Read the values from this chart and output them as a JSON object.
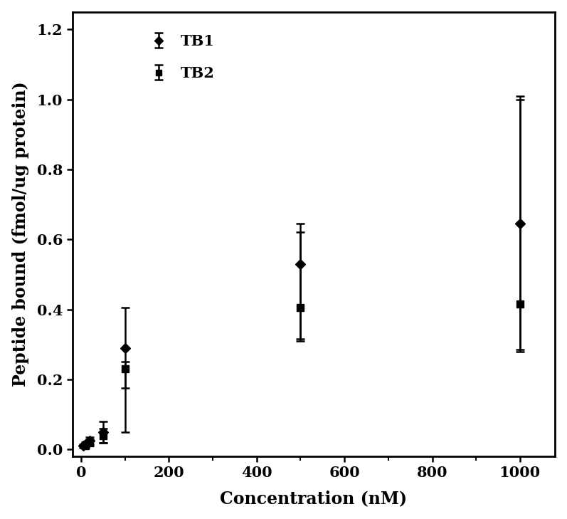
{
  "title": "",
  "xlabel": "Concentration (nM)",
  "ylabel": "Peptide bound (fmol/ug protein)",
  "xlim": [
    -20,
    1080
  ],
  "ylim": [
    -0.02,
    1.25
  ],
  "xticks": [
    0,
    200,
    400,
    600,
    800,
    1000
  ],
  "yticks": [
    0,
    0.2,
    0.4,
    0.6,
    0.8,
    1.0,
    1.2
  ],
  "TB1": {
    "x": [
      5,
      10,
      20,
      50,
      100,
      500,
      1000
    ],
    "y": [
      0.01,
      0.015,
      0.025,
      0.05,
      0.29,
      0.53,
      0.645
    ],
    "yerr_low": [
      0.005,
      0.007,
      0.01,
      0.03,
      0.115,
      0.215,
      0.365
    ],
    "yerr_high": [
      0.005,
      0.007,
      0.01,
      0.03,
      0.115,
      0.115,
      0.365
    ],
    "color": "#000000",
    "marker": "D",
    "markersize": 7,
    "label": "TB1"
  },
  "TB2": {
    "x": [
      10,
      20,
      50,
      100,
      500,
      1000
    ],
    "y": [
      0.01,
      0.02,
      0.04,
      0.23,
      0.405,
      0.415
    ],
    "yerr_low": [
      0.005,
      0.01,
      0.02,
      0.18,
      0.095,
      0.13
    ],
    "yerr_high": [
      0.005,
      0.01,
      0.02,
      0.02,
      0.215,
      0.585
    ],
    "color": "#000000",
    "marker": "s",
    "markersize": 7,
    "label": "TB2"
  },
  "background_color": "#ffffff",
  "legend_fontsize": 15,
  "axis_fontsize": 17,
  "tick_fontsize": 15,
  "spine_linewidth": 2.0
}
